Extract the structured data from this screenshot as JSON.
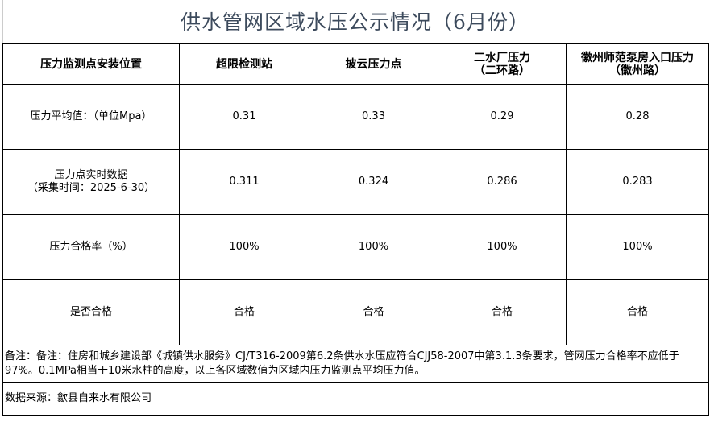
{
  "title": "供水管网区域水压公示情况（6月份）",
  "table": {
    "headers": [
      "压力监测点安装位置",
      "超限检测站",
      "披云压力点",
      "二水厂压力（二环路）",
      "徽州师范泵房入口压力（徽州路）"
    ],
    "header_lines": [
      [
        "压力监测点安装位置"
      ],
      [
        "超限检测站"
      ],
      [
        "披云压力点"
      ],
      [
        "二水厂压力",
        "（二环路）"
      ],
      [
        "徽州师范泵房入口压力",
        "（徽州路）"
      ]
    ],
    "rows": [
      {
        "label_lines": [
          "压力平均值：（单位Mpa）"
        ],
        "values": [
          "0.31",
          "0.33",
          "0.29",
          "0.28"
        ]
      },
      {
        "label_lines": [
          "压力点实时数据",
          "（采集时间：2025-6-30）"
        ],
        "values": [
          "0.311",
          "0.324",
          "0.286",
          "0.283"
        ]
      },
      {
        "label_lines": [
          "压力合格率（%）"
        ],
        "values": [
          "100%",
          "100%",
          "100%",
          "100%"
        ]
      },
      {
        "label_lines": [
          "是否合格"
        ],
        "values": [
          "合格",
          "合格",
          "合格",
          "合格"
        ]
      }
    ],
    "note": "备注：备注：住房和城乡建设部《城镇供水服务》CJ/T316-2009第6.2条供水水压应符合CJJ58-2007中第3.1.3条要求，管网压力合格率不应低于97%。0.1MPa相当于10米水柱的高度，以上各区域数值为区域内压力监测点平均压力值。",
    "source": "数据来源：歙县自来水有限公司"
  },
  "colors": {
    "title": "#3c4a5c",
    "border": "#000000"
  }
}
